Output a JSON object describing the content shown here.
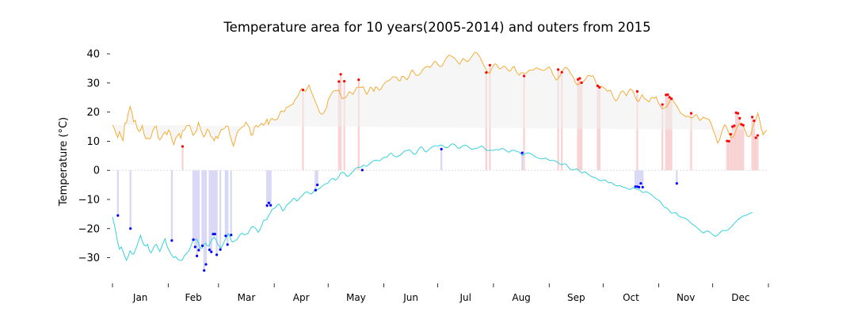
{
  "chart_data": {
    "type": "line",
    "title": "Temperature area for 10 years(2005-2014) and outers from 2015",
    "ylabel": "Temperature ($^\\circ$C)",
    "ylabel_display": "Temperature (°C)",
    "xlabel": "",
    "ylim": [
      -38,
      43
    ],
    "xlim": [
      0,
      365
    ],
    "yticks": [
      -30,
      -20,
      -10,
      0,
      10,
      20,
      30,
      40
    ],
    "months": [
      "Jan",
      "Feb",
      "Mar",
      "Apr",
      "May",
      "Jun",
      "Jul",
      "Aug",
      "Sep",
      "Oct",
      "Nov",
      "Dec"
    ],
    "month_starts": [
      0,
      31,
      59,
      90,
      120,
      151,
      181,
      212,
      243,
      273,
      304,
      334,
      365
    ],
    "colors": {
      "max_line": "#f5a623",
      "min_line": "#22cfd8",
      "fill": "#efefef",
      "max_record_point": "#ff0000",
      "min_record_point": "#0000ff",
      "max_record_bar": "#f8d2d2",
      "min_record_bar": "#d8d8f6",
      "zero_line": "#dddddd"
    },
    "series": [
      {
        "key": "max",
        "values": [
          15.6,
          14.4,
          12.6,
          11.3,
          13.3,
          11.5,
          10.2,
          16.2,
          16.4,
          19.6,
          21.9,
          20.1,
          16.7,
          17.2,
          14.5,
          13.4,
          13.7,
          15.4,
          12.4,
          10.8,
          11.1,
          10.7,
          11.4,
          13.7,
          14.9,
          15.1,
          11.3,
          10.5,
          11.3,
          12.4,
          13.2,
          12.2,
          13.9,
          12.8,
          10.2,
          8.8,
          11.0,
          11.8,
          12.6,
          11.0,
          13.6,
          13.8,
          15.1,
          15.5,
          15.4,
          13.6,
          12.0,
          12.8,
          13.7,
          16.5,
          14.6,
          12.8,
          11.5,
          12.2,
          14.1,
          13.6,
          11.7,
          11.2,
          10.1,
          11.7,
          10.9,
          12.6,
          14.0,
          14.1,
          14.5,
          15.3,
          15.0,
          12.0,
          10.0,
          8.3,
          10.5,
          12.8,
          13.8,
          14.3,
          14.9,
          15.2,
          16.5,
          15.8,
          14.7,
          12.1,
          12.2,
          14.9,
          15.4,
          14.8,
          15.6,
          16.2,
          15.5,
          16.1,
          17.6,
          15.8,
          17.4,
          17.9,
          17.3,
          17.3,
          17.6,
          18.9,
          20.4,
          20.2,
          20.2,
          21.6,
          21.8,
          22.1,
          22.5,
          22.8,
          24.2,
          24.9,
          25.9,
          27.3,
          28.1,
          27.6,
          27.1,
          28.2,
          29.3,
          27.6,
          26.1,
          24.6,
          23.1,
          21.7,
          20.0,
          19.3,
          19.4,
          20.3,
          21.4,
          24.2,
          25.4,
          26.4,
          27.2,
          27.4,
          27.4,
          27.6,
          26.0,
          24.6,
          24.8,
          25.0,
          25.9,
          27.0,
          26.7,
          26.1,
          27.1,
          28.3,
          28.6,
          28.5,
          28.5,
          28.7,
          27.2,
          26.1,
          27.2,
          28.5,
          28.3,
          27.1,
          28.7,
          28.4,
          27.6,
          27.8,
          29.0,
          29.8,
          30.5,
          30.6,
          31.0,
          31.6,
          32.2,
          32.0,
          31.9,
          31.0,
          30.7,
          32.3,
          32.2,
          31.6,
          31.1,
          32.1,
          33.7,
          34.5,
          33.6,
          32.7,
          32.6,
          32.9,
          33.6,
          34.6,
          35.3,
          35.6,
          35.7,
          35.3,
          36.0,
          36.9,
          37.5,
          36.8,
          36.0,
          35.6,
          35.9,
          37.1,
          38.2,
          39.1,
          39.6,
          39.3,
          38.9,
          38.6,
          37.8,
          37.0,
          36.4,
          37.6,
          38.4,
          37.9,
          37.4,
          37.5,
          38.3,
          39.2,
          40.1,
          40.6,
          40.2,
          39.4,
          38.3,
          36.9,
          35.7,
          34.8,
          33.6,
          33.3,
          34.7,
          35.8,
          36.6,
          36.3,
          35.3,
          34.8,
          35.2,
          35.8,
          35.6,
          34.8,
          34.1,
          34.2,
          35.3,
          35.7,
          34.3,
          33.2,
          32.7,
          33.5,
          33.5,
          33.2,
          33.4,
          34.0,
          34.5,
          34.4,
          34.5,
          35.0,
          35.2,
          34.8,
          34.7,
          34.4,
          34.3,
          34.6,
          35.2,
          35.5,
          34.7,
          33.1,
          32.1,
          31.0,
          31.4,
          32.3,
          33.6,
          34.5,
          35.3,
          35.2,
          34.6,
          33.5,
          32.7,
          31.7,
          30.1,
          29.3,
          29.7,
          30.3,
          30.3,
          30.8,
          31.6,
          32.5,
          32.6,
          32.3,
          32.5,
          31.2,
          29.7,
          29.0,
          28.4,
          28.9,
          28.4,
          28.0,
          27.2,
          27.4,
          27.5,
          26.0,
          24.7,
          23.8,
          24.4,
          25.8,
          27.0,
          27.3,
          26.6,
          25.6,
          26.8,
          27.9,
          27.8,
          26.9,
          25.2,
          24.0,
          23.6,
          24.8,
          26.0,
          24.9,
          24.4,
          24.0,
          23.5,
          24.8,
          25.1,
          24.7,
          25.3,
          23.6,
          22.4,
          21.5,
          21.1,
          21.5,
          21.7,
          22.7,
          23.9,
          24.8,
          23.5,
          22.7,
          21.9,
          20.7,
          19.6,
          19.2,
          18.9,
          18.4,
          18.6,
          18.4,
          18.0,
          18.1,
          18.9,
          19.2,
          18.0,
          17.1,
          17.7,
          18.3,
          17.9,
          17.7,
          17.6,
          16.5,
          14.9,
          13.0,
          11.5,
          9.4,
          10.2,
          12.2,
          14.3,
          15.7,
          15.0,
          13.4,
          12.0,
          11.2,
          11.6,
          12.9,
          14.4,
          15.6,
          16.2,
          15.7,
          14.8,
          13.2,
          11.7,
          11.6,
          12.2,
          14.8,
          16.4,
          17.8,
          19.6,
          17.3,
          14.3,
          12.2,
          13.1,
          13.8
        ]
      },
      {
        "key": "min",
        "values": [
          -16.0,
          -18.5,
          -21.5,
          -24.8,
          -27.1,
          -26.3,
          -27.8,
          -29.6,
          -30.9,
          -29.5,
          -27.6,
          -28.5,
          -28.8,
          -27.5,
          -25.8,
          -24.0,
          -22.3,
          -24.4,
          -25.6,
          -26.0,
          -25.4,
          -27.6,
          -28.4,
          -27.1,
          -25.9,
          -25.4,
          -26.8,
          -27.9,
          -26.3,
          -24.7,
          -23.5,
          -25.9,
          -27.2,
          -28.3,
          -29.4,
          -30.0,
          -29.6,
          -30.4,
          -30.8,
          -31.0,
          -30.6,
          -29.2,
          -28.8,
          -28.1,
          -27.0,
          -25.5,
          -24.1,
          -23.9,
          -23.6,
          -24.9,
          -26.7,
          -26.7,
          -25.6,
          -25.0,
          -25.9,
          -26.0,
          -24.5,
          -23.5,
          -22.9,
          -23.9,
          -25.3,
          -26.2,
          -26.7,
          -25.4,
          -24.1,
          -23.0,
          -21.7,
          -22.9,
          -24.5,
          -24.6,
          -24.0,
          -23.8,
          -22.7,
          -21.9,
          -21.6,
          -22.1,
          -21.9,
          -21.9,
          -20.8,
          -19.7,
          -19.2,
          -19.6,
          -20.2,
          -21.3,
          -20.5,
          -19.2,
          -17.3,
          -17.1,
          -16.9,
          -15.5,
          -14.7,
          -13.4,
          -13.1,
          -12.8,
          -11.8,
          -11.6,
          -12.5,
          -13.9,
          -13.5,
          -12.2,
          -11.6,
          -11.1,
          -10.5,
          -9.7,
          -9.7,
          -10.5,
          -10.1,
          -9.3,
          -8.8,
          -8.1,
          -7.5,
          -7.4,
          -7.7,
          -8.2,
          -7.8,
          -7.1,
          -6.4,
          -6.6,
          -6.3,
          -5.7,
          -5.3,
          -4.7,
          -4.6,
          -4.3,
          -3.4,
          -2.9,
          -2.8,
          -3.4,
          -3.0,
          -2.2,
          -1.1,
          -0.7,
          -0.8,
          -1.6,
          -2.1,
          -1.8,
          -1.1,
          -0.5,
          0.2,
          0.8,
          1.0,
          1.1,
          1.2,
          1.8,
          1.5,
          1.4,
          1.9,
          2.4,
          2.9,
          3.3,
          3.5,
          3.4,
          3.2,
          3.6,
          4.1,
          4.5,
          4.4,
          4.9,
          5.7,
          5.9,
          5.2,
          4.8,
          4.6,
          4.9,
          5.2,
          5.7,
          6.3,
          6.8,
          6.8,
          7.1,
          6.8,
          6.0,
          5.5,
          5.7,
          6.7,
          7.6,
          8.1,
          7.6,
          6.6,
          6.3,
          6.9,
          7.5,
          7.9,
          8.3,
          8.5,
          8.4,
          8.4,
          8.7,
          8.6,
          8.1,
          7.8,
          7.8,
          8.3,
          8.9,
          9.1,
          8.9,
          8.3,
          7.6,
          7.6,
          8.1,
          8.5,
          8.6,
          8.5,
          8.0,
          7.5,
          7.2,
          7.4,
          7.5,
          7.6,
          7.9,
          8.3,
          8.3,
          7.6,
          7.0,
          6.8,
          6.9,
          6.9,
          6.8,
          7.1,
          7.1,
          7.0,
          7.2,
          7.5,
          7.4,
          7.0,
          6.5,
          6.2,
          6.6,
          6.9,
          6.9,
          6.6,
          6.5,
          6.2,
          5.5,
          5.1,
          5.6,
          5.9,
          6.0,
          5.9,
          5.5,
          5.1,
          4.7,
          4.4,
          4.2,
          4.0,
          3.9,
          4.1,
          4.2,
          3.8,
          3.5,
          3.4,
          3.4,
          3.3,
          3.1,
          2.7,
          2.2,
          2.0,
          2.1,
          2.3,
          1.9,
          1.0,
          0.4,
          0.2,
          0.2,
          0.4,
          0.4,
          0.0,
          -0.7,
          -0.9,
          -0.5,
          -0.7,
          -1.2,
          -1.7,
          -2.1,
          -2.3,
          -2.5,
          -2.7,
          -3.2,
          -3.5,
          -3.6,
          -3.3,
          -3.3,
          -3.9,
          -4.3,
          -4.1,
          -4.4,
          -4.9,
          -5.2,
          -5.4,
          -5.2,
          -5.4,
          -5.7,
          -5.9,
          -6.0,
          -6.4,
          -6.6,
          -6.2,
          -6.0,
          -6.3,
          -6.4,
          -6.6,
          -6.9,
          -7.5,
          -7.6,
          -7.3,
          -7.5,
          -7.9,
          -8.2,
          -8.7,
          -9.3,
          -9.8,
          -10.1,
          -10.5,
          -11.3,
          -12.2,
          -12.7,
          -12.9,
          -13.5,
          -14.3,
          -14.7,
          -14.6,
          -14.5,
          -15.0,
          -15.7,
          -16.0,
          -16.2,
          -16.3,
          -16.6,
          -17.0,
          -17.6,
          -18.2,
          -18.6,
          -19.0,
          -19.5,
          -20.1,
          -20.6,
          -21.2,
          -21.5,
          -21.1,
          -20.8,
          -21.0,
          -21.4,
          -22.0,
          -22.4,
          -22.6,
          -22.3,
          -21.6,
          -21.0,
          -20.6,
          -20.7,
          -20.7,
          -20.4,
          -19.9,
          -19.3,
          -18.6,
          -17.9,
          -17.3,
          -16.8,
          -16.3,
          -15.9,
          -15.6,
          -15.5,
          -15.3,
          -14.9,
          -14.6,
          -14.5
        ]
      }
    ],
    "record_highs": [
      [
        39,
        8.2
      ],
      [
        106,
        27.6
      ],
      [
        126,
        30.5
      ],
      [
        127,
        33.0
      ],
      [
        129,
        30.6
      ],
      [
        137,
        31.1
      ],
      [
        208,
        33.6
      ],
      [
        210,
        36.1
      ],
      [
        229,
        32.4
      ],
      [
        248,
        34.6
      ],
      [
        250,
        33.7
      ],
      [
        259,
        31.2
      ],
      [
        260,
        31.6
      ],
      [
        261,
        30.1
      ],
      [
        270,
        29.0
      ],
      [
        271,
        28.5
      ],
      [
        292,
        27.1
      ],
      [
        306,
        22.6
      ],
      [
        308,
        25.9
      ],
      [
        309,
        26.0
      ],
      [
        310,
        25.1
      ],
      [
        311,
        24.6
      ],
      [
        322,
        19.6
      ],
      [
        342,
        10.1
      ],
      [
        343,
        10.0
      ],
      [
        344,
        12.4
      ],
      [
        345,
        15.0
      ],
      [
        346,
        15.3
      ],
      [
        347,
        19.8
      ],
      [
        348,
        19.6
      ],
      [
        349,
        17.9
      ],
      [
        350,
        15.8
      ],
      [
        351,
        15.5
      ],
      [
        356,
        18.3
      ],
      [
        357,
        17.0
      ],
      [
        358,
        11.2
      ],
      [
        359,
        12.0
      ]
    ],
    "record_lows": [
      [
        3,
        -15.5
      ],
      [
        10,
        -20.0
      ],
      [
        33,
        -24.1
      ],
      [
        45,
        -23.8
      ],
      [
        46,
        -26.3
      ],
      [
        47,
        -29.4
      ],
      [
        48,
        -27.4
      ],
      [
        50,
        -25.9
      ],
      [
        51,
        -34.4
      ],
      [
        52,
        -32.3
      ],
      [
        54,
        -27.3
      ],
      [
        55,
        -28.0
      ],
      [
        56,
        -21.9
      ],
      [
        57,
        -21.9
      ],
      [
        58,
        -29.0
      ],
      [
        60,
        -27.2
      ],
      [
        63,
        -22.5
      ],
      [
        64,
        -25.5
      ],
      [
        66,
        -22.2
      ],
      [
        86,
        -12.1
      ],
      [
        87,
        -11.2
      ],
      [
        88,
        -12.0
      ],
      [
        113,
        -6.8
      ],
      [
        114,
        -5.0
      ],
      [
        139,
        0.1
      ],
      [
        183,
        7.3
      ],
      [
        228,
        6.0
      ],
      [
        291,
        -5.6
      ],
      [
        292,
        -5.6
      ],
      [
        293,
        -5.8
      ],
      [
        294,
        -4.5
      ],
      [
        295,
        -5.8
      ],
      [
        314,
        -4.5
      ]
    ]
  }
}
